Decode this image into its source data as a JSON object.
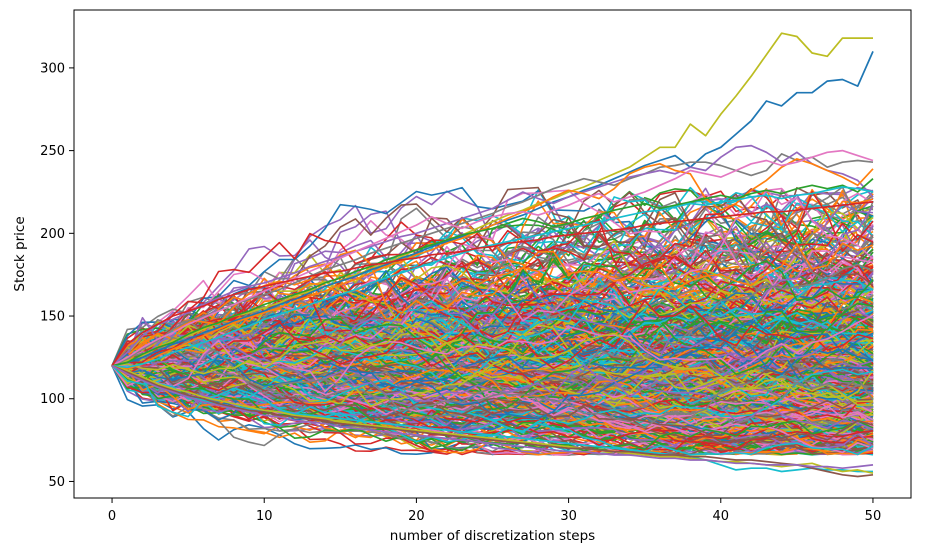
{
  "chart_data": {
    "type": "line",
    "title": "",
    "xlabel": "number of discretization steps",
    "ylabel": "Stock price",
    "xlim": [
      -2.5,
      52.5
    ],
    "ylim": [
      40,
      335
    ],
    "xticks": [
      0,
      10,
      20,
      30,
      40,
      50
    ],
    "yticks": [
      50,
      100,
      150,
      200,
      250,
      300
    ],
    "grid": false,
    "legend": "none",
    "simulation": {
      "start_price": 120,
      "steps": 50,
      "num_paths": 700,
      "step_volatility": 0.045
    },
    "highlighted_paths": [
      {
        "color": "#bcbd22",
        "values": [
          120,
          123,
          126,
          131,
          135,
          138,
          142,
          146,
          150,
          152,
          155,
          158,
          162,
          165,
          168,
          171,
          175,
          178,
          182,
          186,
          190,
          193,
          196,
          199,
          203,
          207,
          211,
          214,
          218,
          221,
          225,
          228,
          232,
          236,
          240,
          246,
          252,
          252,
          266,
          259,
          272,
          283,
          295,
          308,
          321,
          319,
          309,
          307,
          318,
          318,
          318
        ]
      },
      {
        "color": "#1f77b4",
        "values": [
          120,
          122,
          125,
          129,
          133,
          136,
          140,
          143,
          147,
          150,
          153,
          157,
          160,
          164,
          168,
          171,
          174,
          178,
          181,
          185,
          188,
          192,
          195,
          198,
          201,
          205,
          208,
          211,
          215,
          219,
          222,
          226,
          229,
          233,
          237,
          241,
          244,
          247,
          240,
          248,
          252,
          260,
          268,
          280,
          277,
          285,
          285,
          292,
          293,
          289,
          310
        ]
      },
      {
        "color": "#7f7f7f",
        "values": [
          120,
          124,
          130,
          135,
          142,
          147,
          150,
          153,
          157,
          160,
          163,
          166,
          170,
          174,
          178,
          181,
          184,
          188,
          191,
          194,
          197,
          200,
          203,
          206,
          209,
          212,
          216,
          219,
          223,
          227,
          230,
          233,
          231,
          229,
          233,
          236,
          240,
          241,
          243,
          243,
          241,
          238,
          235,
          238,
          248,
          244,
          246,
          240,
          243,
          244,
          243
        ]
      },
      {
        "color": "#9467bd",
        "values": [
          120,
          128,
          138,
          145,
          148,
          152,
          157,
          161,
          165,
          168,
          170,
          173,
          176,
          180,
          183,
          186,
          189,
          192,
          195,
          198,
          200,
          203,
          206,
          209,
          212,
          215,
          220,
          225,
          221,
          218,
          222,
          225,
          228,
          231,
          234,
          236,
          238,
          236,
          240,
          238,
          246,
          252,
          253,
          249,
          243,
          249,
          242,
          238,
          236,
          232,
          222
        ]
      },
      {
        "color": "#ff7f0e",
        "values": [
          120,
          118,
          121,
          126,
          130,
          134,
          138,
          142,
          146,
          149,
          152,
          155,
          159,
          162,
          165,
          169,
          172,
          176,
          180,
          183,
          187,
          190,
          194,
          197,
          201,
          205,
          209,
          213,
          217,
          222,
          226,
          224,
          221,
          227,
          236,
          240,
          242,
          238,
          236,
          221,
          214,
          218,
          226,
          232,
          240,
          245,
          242,
          238,
          234,
          229,
          239
        ]
      },
      {
        "color": "#e377c2",
        "values": [
          120,
          125,
          131,
          136,
          140,
          145,
          149,
          153,
          157,
          161,
          165,
          169,
          173,
          177,
          181,
          185,
          189,
          193,
          197,
          201,
          205,
          210,
          206,
          203,
          207,
          210,
          212,
          213,
          211,
          214,
          217,
          221,
          224,
          219,
          222,
          225,
          229,
          233,
          238,
          236,
          234,
          238,
          242,
          244,
          241,
          243,
          246,
          249,
          250,
          247,
          244
        ]
      },
      {
        "color": "#2ca02c",
        "values": [
          120,
          122,
          127,
          131,
          134,
          139,
          143,
          146,
          150,
          153,
          157,
          160,
          163,
          166,
          170,
          173,
          177,
          180,
          184,
          187,
          190,
          193,
          196,
          199,
          201,
          203,
          206,
          209,
          207,
          204,
          206,
          209,
          211,
          214,
          216,
          218,
          215,
          217,
          219,
          221,
          223,
          221,
          224,
          226,
          224,
          227,
          229,
          227,
          229,
          225,
          233
        ]
      },
      {
        "color": "#17becf",
        "values": [
          120,
          119,
          121,
          124,
          128,
          131,
          134,
          137,
          141,
          144,
          148,
          151,
          154,
          157,
          160,
          163,
          166,
          170,
          173,
          176,
          179,
          182,
          185,
          188,
          191,
          193,
          195,
          197,
          199,
          201,
          203,
          205,
          207,
          209,
          211,
          213,
          214,
          216,
          218,
          217,
          219,
          220,
          222,
          223,
          221,
          223,
          224,
          226,
          228,
          227,
          225
        ]
      },
      {
        "color": "#d62728",
        "values": [
          120,
          133,
          140,
          145,
          150,
          153,
          156,
          160,
          163,
          166,
          168,
          170,
          172,
          174,
          176,
          177,
          179,
          181,
          182,
          184,
          185,
          187,
          188,
          189,
          191,
          192,
          194,
          195,
          196,
          198,
          199,
          200,
          201,
          202,
          203,
          205,
          206,
          207,
          208,
          209,
          210,
          211,
          212,
          213,
          213,
          214,
          215,
          216,
          217,
          218,
          219
        ]
      },
      {
        "color": "#17becf",
        "values": [
          120,
          116,
          111,
          107,
          104,
          101,
          99,
          97,
          95,
          94,
          93,
          92,
          91,
          90,
          89,
          88,
          87,
          86,
          85,
          84,
          83,
          82,
          81,
          80,
          79,
          78,
          77,
          76,
          75,
          74,
          73,
          72,
          71,
          70,
          69,
          68,
          67,
          66,
          65,
          63,
          60,
          57,
          58,
          58,
          56,
          57,
          58,
          57,
          57,
          56,
          56
        ]
      },
      {
        "color": "#bcbd22",
        "values": [
          120,
          117,
          113,
          109,
          106,
          104,
          101,
          99,
          97,
          95,
          93,
          92,
          90,
          89,
          88,
          86,
          85,
          84,
          83,
          82,
          81,
          80,
          79,
          78,
          77,
          76,
          75,
          74,
          73,
          72,
          71,
          70,
          69,
          68,
          67,
          66,
          65,
          65,
          64,
          63,
          62,
          62,
          61,
          60,
          59,
          60,
          61,
          58,
          56,
          57,
          55
        ]
      },
      {
        "color": "#8c564b",
        "values": [
          120,
          116,
          112,
          108,
          105,
          102,
          100,
          97,
          95,
          93,
          92,
          90,
          89,
          88,
          86,
          85,
          84,
          83,
          82,
          81,
          80,
          79,
          78,
          77,
          76,
          75,
          74,
          73,
          72,
          71,
          70,
          70,
          69,
          68,
          68,
          67,
          66,
          66,
          65,
          65,
          64,
          63,
          63,
          62,
          61,
          60,
          58,
          56,
          54,
          53,
          54
        ]
      },
      {
        "color": "#9467bd",
        "values": [
          120,
          115,
          111,
          107,
          104,
          101,
          98,
          96,
          94,
          92,
          90,
          89,
          87,
          86,
          85,
          83,
          82,
          81,
          80,
          79,
          78,
          77,
          76,
          75,
          74,
          73,
          72,
          71,
          70,
          69,
          68,
          68,
          67,
          66,
          66,
          65,
          64,
          64,
          63,
          63,
          62,
          61,
          61,
          60,
          60,
          60,
          59,
          59,
          58,
          59,
          60
        ]
      }
    ]
  }
}
